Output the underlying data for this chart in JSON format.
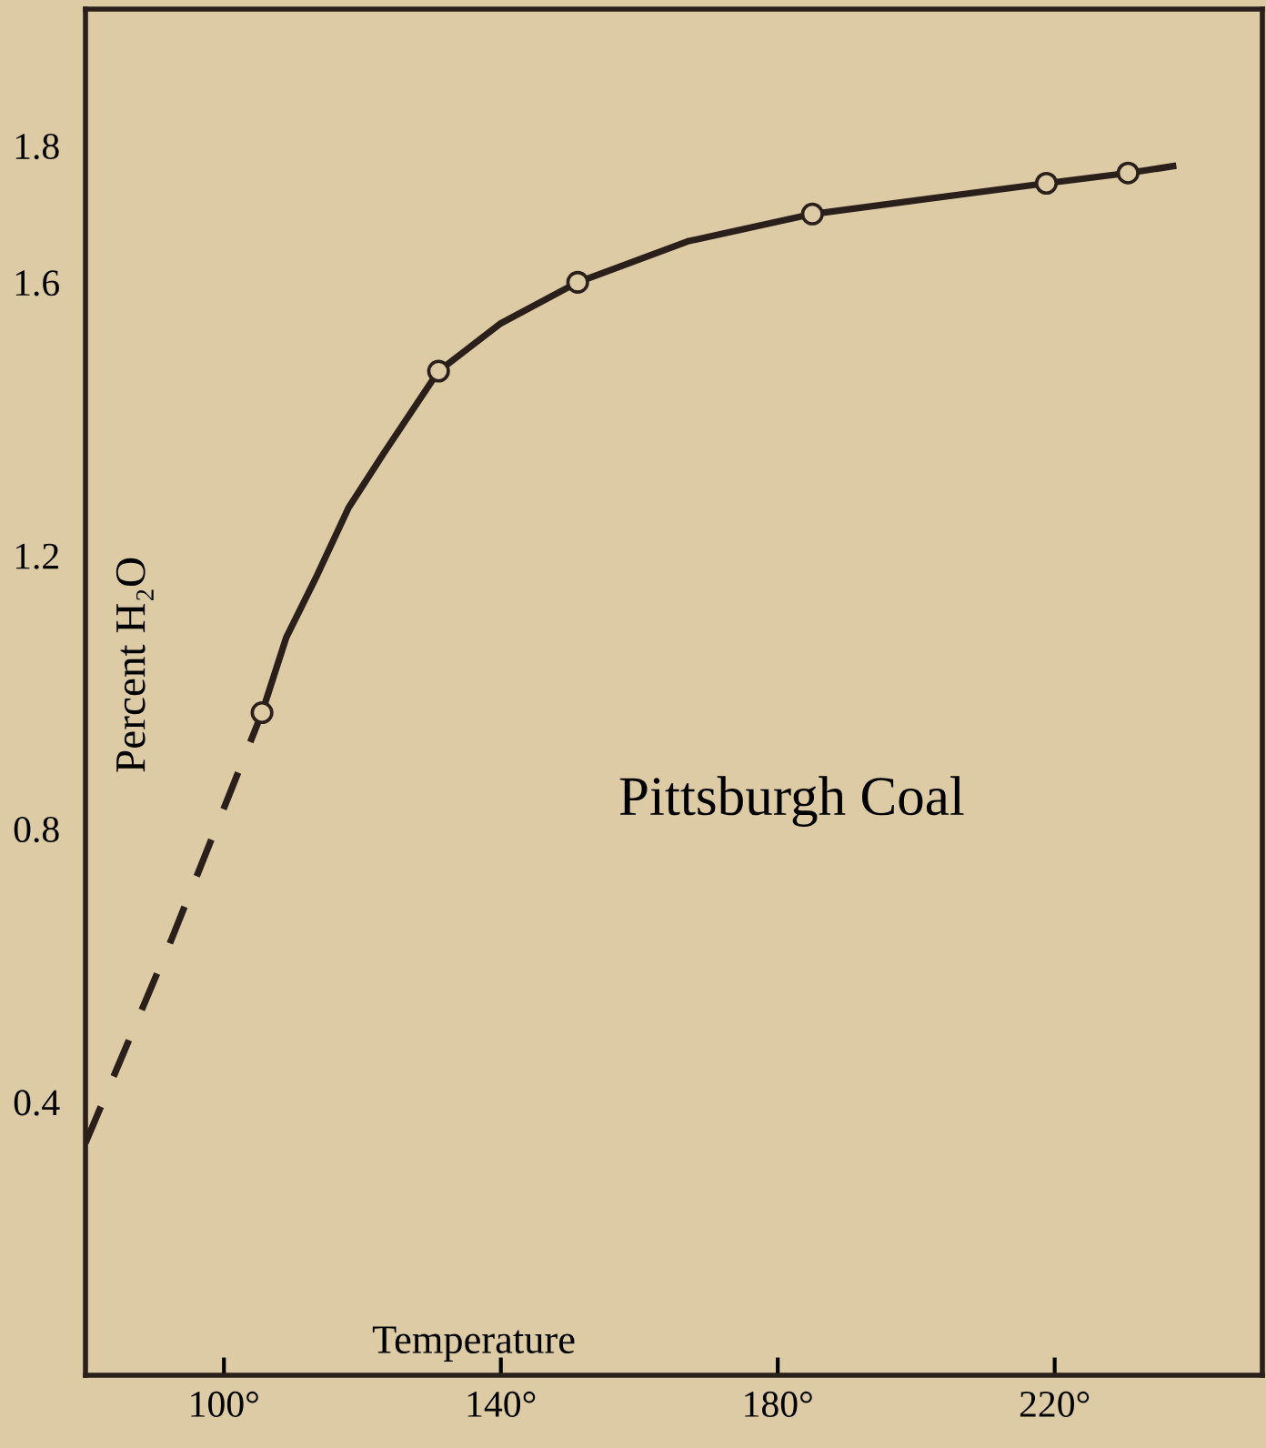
{
  "chart_data": {
    "type": "line",
    "xlabel": "Temperature",
    "ylabel": "Percent H₂O",
    "annotations": [
      "Pittsburgh Coal"
    ],
    "xlim": [
      80,
      250
    ],
    "ylim": [
      0,
      2.0
    ],
    "xticks": [
      {
        "value": 100,
        "label": "100°"
      },
      {
        "value": 140,
        "label": "140°"
      },
      {
        "value": 180,
        "label": "180°"
      },
      {
        "value": 220,
        "label": "220°"
      }
    ],
    "yticks": [
      0.4,
      0.8,
      1.2,
      1.6,
      1.8
    ],
    "grid": false,
    "legend": false,
    "series": [
      {
        "line_style": "dashed",
        "marker": "none",
        "color": "#2a1f1a",
        "x": [
          80,
          92.5,
          105.5
        ],
        "values": [
          0.34,
          0.64,
          0.97
        ]
      },
      {
        "line_style": "solid",
        "marker": "none",
        "color": "#2a1f1a",
        "x": [
          105.5,
          109,
          113.4,
          118,
          123.1,
          131.0,
          140,
          151.1,
          167,
          185.0,
          218.8,
          230.6,
          237.1
        ],
        "values": [
          0.97,
          1.08,
          1.17,
          1.27,
          1.35,
          1.47,
          1.54,
          1.6,
          1.66,
          1.7,
          1.745,
          1.76,
          1.77
        ]
      },
      {
        "type": "scatter",
        "marker": "circle",
        "color": "#2a1f1a",
        "x": [
          105.5,
          131.0,
          151.1,
          185.0,
          218.8,
          230.6
        ],
        "values": [
          0.97,
          1.47,
          1.6,
          1.7,
          1.745,
          1.76
        ]
      }
    ]
  }
}
